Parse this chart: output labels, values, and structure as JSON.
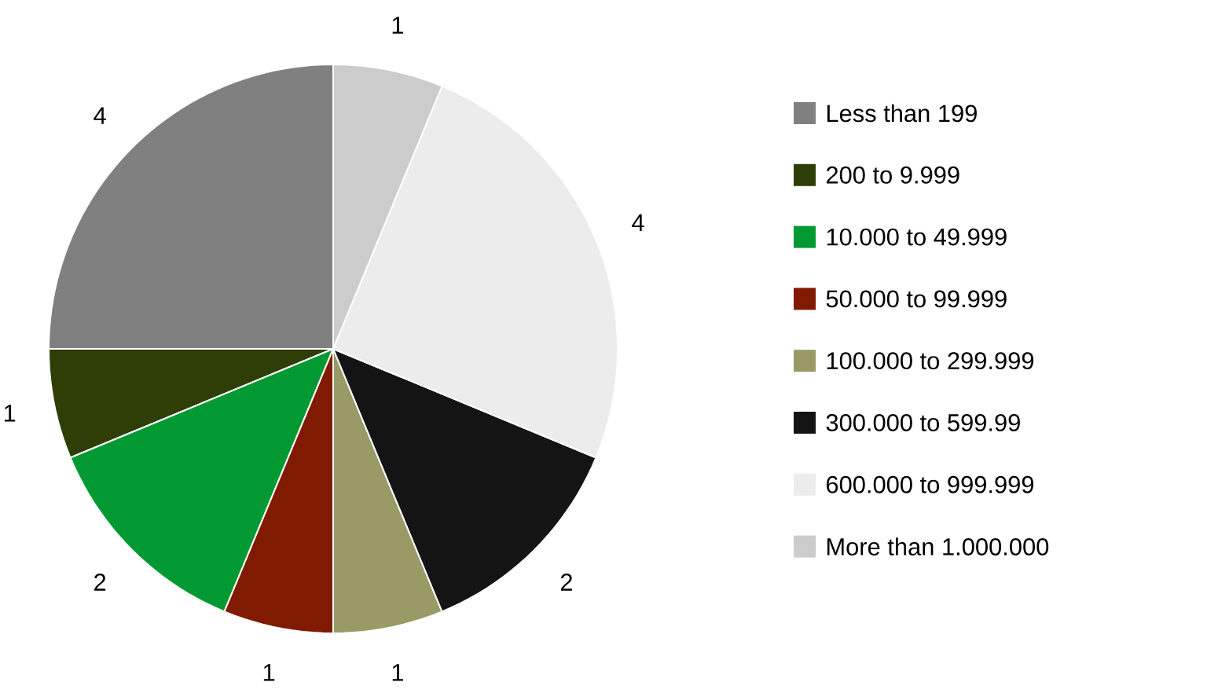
{
  "chart_data": {
    "type": "pie",
    "categories": [
      "Less than 199",
      "200 to 9.999",
      "10.000 to 49.999",
      "50.000 to 99.999",
      "100.000 to 299.999",
      "300.000 to 599.99",
      "600.000 to 999.999",
      "More than 1.000.000"
    ],
    "values": [
      4,
      1,
      2,
      1,
      1,
      2,
      4,
      1
    ],
    "colors": [
      "#808080",
      "#2f3d07",
      "#029933",
      "#801a00",
      "#9a9a67",
      "#141414",
      "#ececec",
      "#cccccc"
    ],
    "data_labels": true,
    "legend": "right"
  }
}
